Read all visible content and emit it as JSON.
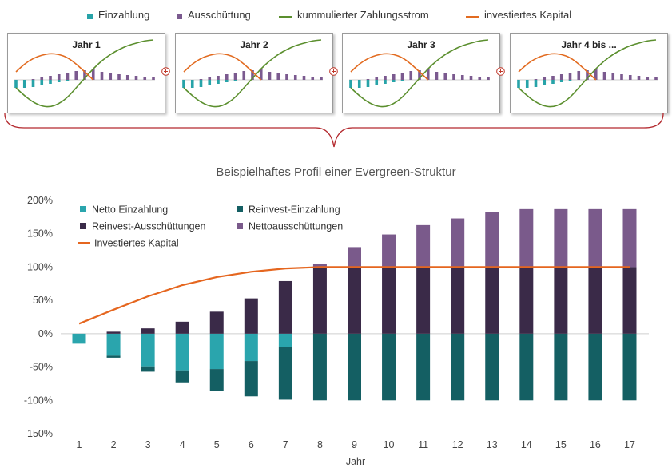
{
  "top_legend": [
    {
      "label": "Einzahlung",
      "kind": "square",
      "color": "#27a3a8"
    },
    {
      "label": "Ausschüttung",
      "kind": "square",
      "color": "#7b5a8f"
    },
    {
      "label": "kummulierter Zahlungsstrom",
      "kind": "line",
      "color": "#5b8f2e"
    },
    {
      "label": "investiertes Kapital",
      "kind": "line",
      "color": "#e26b20"
    }
  ],
  "panels": [
    {
      "title": "Jahr 1"
    },
    {
      "title": "Jahr 2"
    },
    {
      "title": "Jahr 3"
    },
    {
      "title": "Jahr 4 bis ..."
    }
  ],
  "chart_data": {
    "type": "bar",
    "title": "Beispielhaftes Profil einer Evergreen-Struktur",
    "xlabel": "Jahr",
    "ylabel": "",
    "categories": [
      "1",
      "2",
      "3",
      "4",
      "5",
      "6",
      "7",
      "8",
      "9",
      "10",
      "11",
      "12",
      "13",
      "14",
      "15",
      "16",
      "17"
    ],
    "y_ticks": [
      "200%",
      "150%",
      "100%",
      "50%",
      "0%",
      "-50%",
      "-100%",
      "-150%"
    ],
    "ylim": [
      -150,
      200
    ],
    "stacked": true,
    "legend_position": "top-left",
    "series": [
      {
        "name": "Netto Einzahlung",
        "color": "#2aa5ad",
        "values": [
          -15,
          -33,
          -49,
          -55,
          -53,
          -41,
          -20,
          0,
          0,
          0,
          0,
          0,
          0,
          0,
          0,
          0,
          0
        ]
      },
      {
        "name": "Reinvest-Einzahlung",
        "color": "#145f63",
        "values": [
          0,
          -3,
          -8,
          -18,
          -33,
          -53,
          -79,
          -100,
          -100,
          -100,
          -100,
          -100,
          -100,
          -100,
          -100,
          -100,
          -100
        ]
      },
      {
        "name": "Reinvest-Ausschüttungen",
        "color": "#3a2a48",
        "values": [
          0,
          3,
          8,
          18,
          33,
          53,
          79,
          100,
          100,
          100,
          100,
          100,
          100,
          100,
          100,
          100,
          100
        ]
      },
      {
        "name": "Nettoausschüttungen",
        "color": "#7a5a8b",
        "values": [
          0,
          0,
          0,
          0,
          0,
          0,
          0,
          5,
          30,
          49,
          63,
          73,
          83,
          87,
          87,
          87,
          87
        ]
      }
    ],
    "line_series": {
      "name": "Investiertes Kapital",
      "color": "#e5661f",
      "values": [
        15,
        36,
        56,
        73,
        85,
        93,
        98,
        100,
        100,
        100,
        100,
        100,
        100,
        100,
        100,
        100,
        100
      ]
    },
    "legend": [
      {
        "label": "Netto Einzahlung",
        "kind": "square",
        "color": "#2aa5ad"
      },
      {
        "label": "Reinvest-Einzahlung",
        "kind": "square",
        "color": "#145f63"
      },
      {
        "label": "Reinvest-Ausschüttungen",
        "kind": "square",
        "color": "#3a2a48"
      },
      {
        "label": "Nettoausschüttungen",
        "kind": "square",
        "color": "#7a5a8b"
      },
      {
        "label": "Investiertes Kapital",
        "kind": "line",
        "color": "#e5661f"
      }
    ]
  },
  "mini_chart": {
    "type": "bar",
    "einzahlung": [
      -10,
      -10,
      -9,
      -7,
      -5,
      -3,
      -2,
      0,
      0,
      0,
      0,
      0,
      0,
      0,
      0,
      0,
      0
    ],
    "ausschuettung": [
      0,
      0,
      1,
      3,
      5,
      7,
      9,
      11,
      12,
      13,
      10,
      8,
      7,
      6,
      5,
      4,
      3
    ],
    "kumuliert": [
      -10,
      -20,
      -28,
      -33,
      -34,
      -30,
      -22,
      -10,
      2,
      14,
      24,
      32,
      38,
      43,
      46,
      49,
      50
    ],
    "investiert": [
      10,
      20,
      27,
      31,
      33,
      32,
      28,
      20,
      10,
      0
    ]
  }
}
